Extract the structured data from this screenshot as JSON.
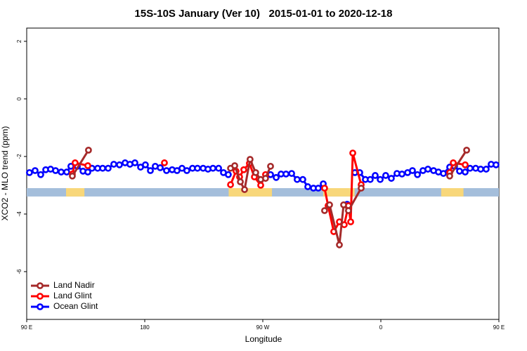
{
  "chart_data": {
    "type": "line",
    "title": "15S-10S January (Ver 10)   2015-01-01 to 2020-12-18",
    "x_label": "Longitude",
    "y_label": "XCO2 - MLO trend (ppm)",
    "xlim": [
      90,
      450
    ],
    "xticks": [
      {
        "value": 90,
        "label": "90 E"
      },
      {
        "value": 180,
        "label": "180"
      },
      {
        "value": 270,
        "label": "90 W"
      },
      {
        "value": 360,
        "label": "0"
      },
      {
        "value": 450,
        "label": "90 E"
      }
    ],
    "ylim": [
      -7.66,
      2.46
    ],
    "yticks": [
      -6,
      -4,
      -2,
      0,
      2
    ],
    "legend": "bottom-left",
    "band": {
      "ylim": [
        -3.1,
        -3.39
      ],
      "color": "#a4bedb",
      "land_color": "#f8d77a",
      "land_spans": [
        [
          120,
          134
        ],
        [
          244,
          277
        ],
        [
          316,
          340
        ],
        [
          406,
          423
        ]
      ]
    },
    "series": [
      {
        "name": "Land Nadir",
        "color": "#a52a2a",
        "x": [
          124.8,
          137.1,
          null,
          245.4,
          248.6,
          252.9,
          256.1,
          260.3,
          264.6,
          268.4,
          272.1,
          275.9,
          null,
          317.1,
          320.9,
          328.4,
          331.6,
          335.3,
          345.0,
          null,
          412.5,
          425.4
        ],
        "values": [
          -2.68,
          -1.78,
          null,
          -2.41,
          -2.32,
          -2.88,
          -3.15,
          -2.1,
          -2.56,
          -2.8,
          -2.76,
          -2.34,
          null,
          -3.88,
          -3.68,
          -5.07,
          -3.68,
          -3.88,
          -3.1,
          null,
          -2.68,
          -1.78
        ]
      },
      {
        "name": "Land Glint",
        "color": "#ff0000",
        "x": [
          124.8,
          126.9,
          136.6,
          null,
          195.0,
          null,
          245.4,
          249.6,
          252.3,
          255.5,
          259.8,
          263.6,
          268.4,
          272.1,
          null,
          317.1,
          319.8,
          324.1,
          328.4,
          332.1,
          335.3,
          337.0,
          338.6,
          345.0,
          null,
          412.5,
          415.2,
          424.3
        ],
        "values": [
          -2.61,
          -2.22,
          -2.32,
          null,
          -2.22,
          null,
          -2.98,
          -2.51,
          -2.71,
          -2.46,
          -2.24,
          -2.71,
          -3.0,
          -2.63,
          null,
          -3.1,
          -3.71,
          -4.61,
          -4.27,
          -4.37,
          -3.71,
          -4.27,
          -1.88,
          -2.98,
          null,
          -2.56,
          -2.22,
          -2.29
        ]
      },
      {
        "name": "Ocean Glint",
        "color": "#0000ff",
        "x": [
          92.1,
          96.4,
          100.7,
          104.5,
          108.2,
          112.0,
          116.3,
          120.5,
          123.7,
          128.6,
          132.9,
          136.6,
          139.8,
          144.1,
          147.9,
          152.1,
          156.4,
          160.7,
          165.0,
          168.7,
          172.5,
          176.8,
          180.5,
          184.3,
          188.0,
          191.8,
          196.6,
          200.9,
          204.6,
          208.4,
          212.1,
          216.4,
          220.2,
          224.5,
          228.2,
          232.0,
          236.3,
          240.0,
          243.7,
          null,
          275.9,
          280.2,
          283.9,
          287.7,
          292.0,
          296.2,
          300.5,
          304.3,
          308.6,
          312.3,
          316.1,
          null,
          334.3,
          null,
          340.2,
          343.9,
          348.2,
          351.9,
          355.7,
          359.5,
          363.7,
          368.0,
          372.3,
          376.1,
          380.4,
          384.1,
          387.9,
          392.1,
          395.9,
          400.2,
          403.9,
          407.7,
          412.5,
          416.2,
          420.0,
          424.3,
          428.0,
          432.3,
          436.1,
          440.3,
          444.1,
          447.8
        ],
        "values": [
          -2.56,
          -2.49,
          -2.63,
          -2.46,
          -2.44,
          -2.49,
          -2.54,
          -2.54,
          -2.34,
          -2.34,
          -2.51,
          -2.54,
          -2.41,
          -2.41,
          -2.41,
          -2.41,
          -2.27,
          -2.29,
          -2.22,
          -2.27,
          -2.22,
          -2.37,
          -2.29,
          -2.49,
          -2.34,
          -2.39,
          -2.49,
          -2.46,
          -2.49,
          -2.41,
          -2.49,
          -2.41,
          -2.41,
          -2.41,
          -2.44,
          -2.41,
          -2.41,
          -2.56,
          -2.63,
          null,
          -2.63,
          -2.73,
          -2.61,
          -2.61,
          -2.59,
          -2.8,
          -2.8,
          -3.05,
          -3.1,
          -3.1,
          -2.95,
          null,
          -3.66,
          null,
          -2.56,
          -2.56,
          -2.8,
          -2.8,
          -2.66,
          -2.8,
          -2.66,
          -2.76,
          -2.59,
          -2.61,
          -2.56,
          -2.49,
          -2.63,
          -2.49,
          -2.44,
          -2.49,
          -2.54,
          -2.59,
          -2.37,
          -2.34,
          -2.51,
          -2.54,
          -2.41,
          -2.41,
          -2.44,
          -2.44,
          -2.27,
          -2.29
        ]
      }
    ]
  }
}
